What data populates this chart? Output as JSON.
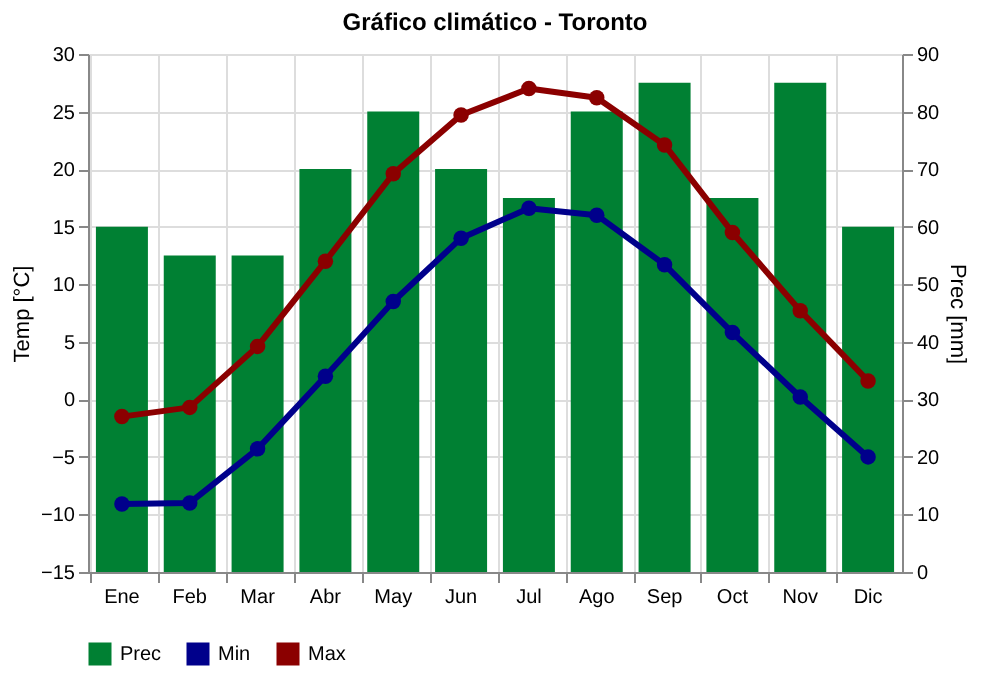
{
  "chart_data": {
    "type": "line",
    "title": "Gráfico climático - Toronto",
    "categories": [
      "Ene",
      "Feb",
      "Mar",
      "Abr",
      "May",
      "Jun",
      "Jul",
      "Ago",
      "Sep",
      "Oct",
      "Nov",
      "Dic"
    ],
    "ylabel": "Temp [°C]",
    "y2label": "Prec [mm]",
    "ylim": [
      -15,
      30
    ],
    "yticks": [
      -15,
      -10,
      -5,
      0,
      5,
      10,
      15,
      20,
      25,
      30
    ],
    "y2lim": [
      0,
      90
    ],
    "y2ticks": [
      0,
      10,
      20,
      30,
      40,
      50,
      60,
      70,
      80,
      90
    ],
    "series": [
      {
        "name": "Prec",
        "type": "bar",
        "axis": "y2",
        "color": "#008033",
        "values": [
          60,
          55,
          55,
          70,
          80,
          70,
          65,
          80,
          85,
          65,
          85,
          60
        ]
      },
      {
        "name": "Min",
        "color": "#00008b",
        "values": [
          -9.1,
          -9.0,
          -4.3,
          2.0,
          8.5,
          14.0,
          16.6,
          16.0,
          11.7,
          5.8,
          0.2,
          -5.0
        ]
      },
      {
        "name": "Max",
        "color": "#8b0000",
        "values": [
          -1.5,
          -0.7,
          4.6,
          12.0,
          19.6,
          24.7,
          27.0,
          26.2,
          22.1,
          14.5,
          7.7,
          1.6
        ]
      }
    ],
    "marker": "circle",
    "grid": true,
    "legend": "bottom"
  }
}
